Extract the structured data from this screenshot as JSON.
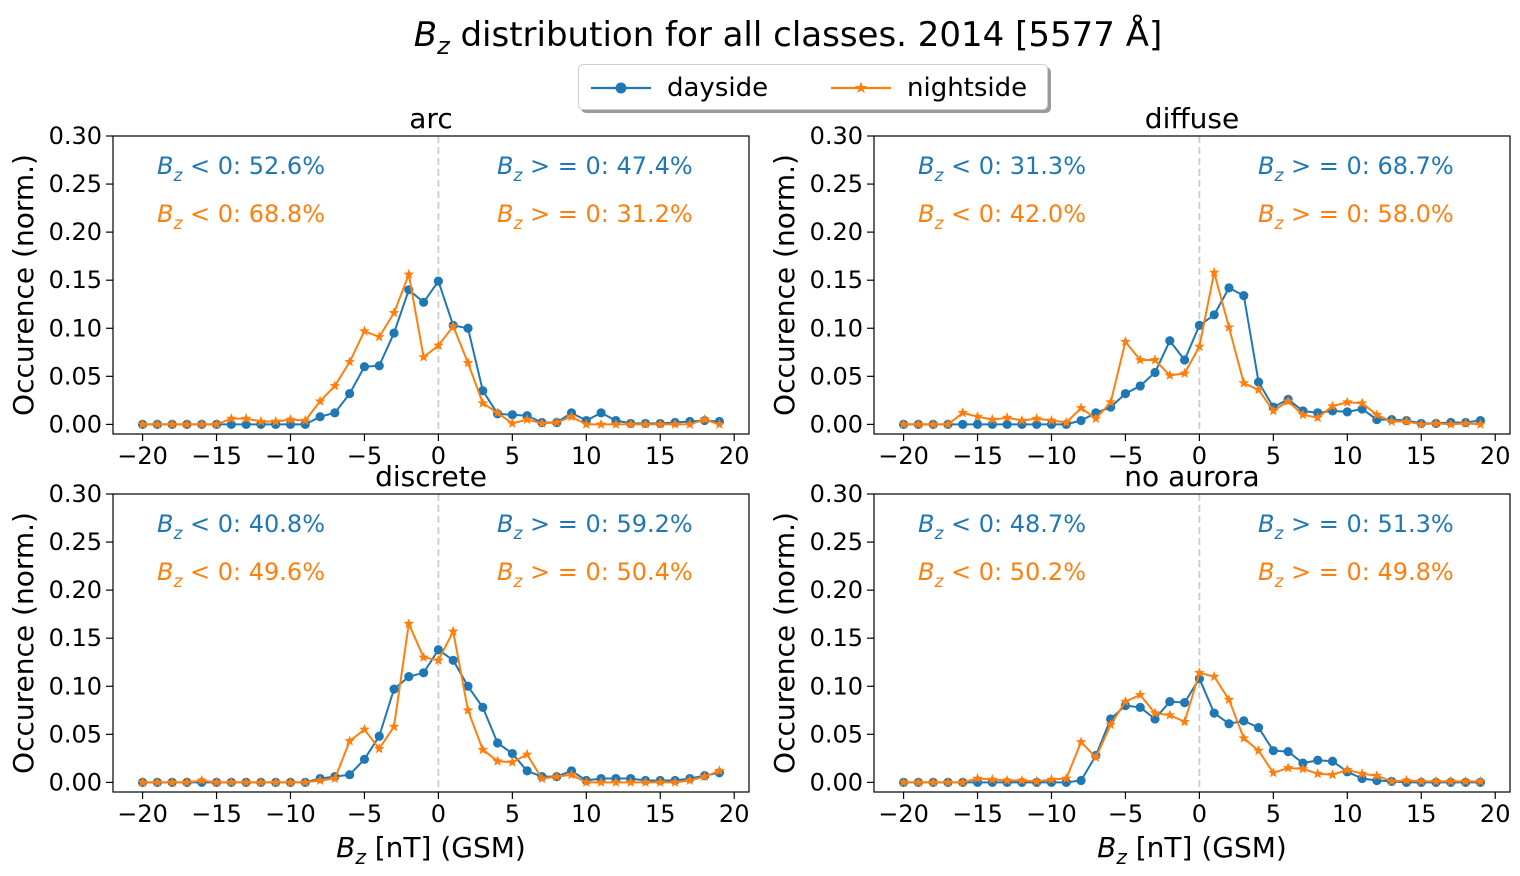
{
  "figure": {
    "title_prefix": "B",
    "title_sub": "z",
    "title_rest": " distribution for all classes. 2014 [5577 Å]",
    "ylabel": "Occurence (norm.)",
    "xlabel_prefix": "B",
    "xlabel_sub": "z",
    "xlabel_rest": " [nT] (GSM)"
  },
  "legend": {
    "placement": "top-center",
    "items": [
      {
        "label": "dayside",
        "color": "#1f77b4",
        "marker": "circle"
      },
      {
        "label": "nightside",
        "color": "#ff7f0e",
        "marker": "star"
      }
    ]
  },
  "colors": {
    "dayside": "#1f77b4",
    "nightside": "#ff7f0e",
    "zero_line": "#cccccc"
  },
  "annotations": {
    "neg_prefix": "B",
    "neg_sub": "z",
    "neg_rest": " < 0:",
    "pos_prefix": "B",
    "pos_sub": "z",
    "pos_rest": " > = 0:"
  },
  "chart_data": [
    {
      "type": "line",
      "title": "arc",
      "xlim": [
        -22,
        21
      ],
      "ylim": [
        -0.01,
        0.3
      ],
      "xticks": [
        -20,
        -15,
        -10,
        -5,
        0,
        5,
        10,
        15,
        20
      ],
      "yticks": [
        0.0,
        0.05,
        0.1,
        0.15,
        0.2,
        0.25,
        0.3
      ],
      "xticklabels": [
        "−20",
        "−15",
        "−10",
        "−5",
        "0",
        "5",
        "10",
        "15",
        "20"
      ],
      "yticklabels": [
        "0.00",
        "0.05",
        "0.10",
        "0.15",
        "0.20",
        "0.25",
        "0.30"
      ],
      "x": [
        -20,
        -19,
        -18,
        -17,
        -16,
        -15,
        -14,
        -13,
        -12,
        -11,
        -10,
        -9,
        -8,
        -7,
        -6,
        -5,
        -4,
        -3,
        -2,
        -1,
        0,
        1,
        2,
        3,
        4,
        5,
        6,
        7,
        8,
        9,
        10,
        11,
        12,
        13,
        14,
        15,
        16,
        17,
        18,
        19
      ],
      "series": [
        {
          "name": "dayside",
          "values": [
            0,
            0,
            0,
            0,
            0,
            0,
            0,
            0,
            0,
            0,
            0,
            0,
            0.008,
            0.012,
            0.032,
            0.06,
            0.061,
            0.095,
            0.14,
            0.127,
            0.149,
            0.103,
            0.1,
            0.035,
            0.011,
            0.01,
            0.009,
            0.002,
            0.002,
            0.012,
            0.004,
            0.012,
            0.004,
            0.001,
            0.001,
            0.001,
            0.002,
            0.003,
            0.004,
            0.003
          ]
        },
        {
          "name": "nightside",
          "values": [
            0,
            0,
            0,
            0,
            0,
            0,
            0.006,
            0.006,
            0.003,
            0.003,
            0.005,
            0.004,
            0.024,
            0.04,
            0.065,
            0.097,
            0.091,
            0.116,
            0.156,
            0.07,
            0.082,
            0.102,
            0.064,
            0.022,
            0.012,
            0.001,
            0.005,
            0.001,
            0.002,
            0.008,
            0,
            0,
            0,
            0,
            0,
            0,
            0,
            0,
            0.005,
            0
          ]
        }
      ],
      "percent_text": {
        "dayside_neg": "52.6%",
        "dayside_pos": "47.4%",
        "nightside_neg": "68.8%",
        "nightside_pos": "31.2%"
      }
    },
    {
      "type": "line",
      "title": "diffuse",
      "xlim": [
        -22,
        21
      ],
      "ylim": [
        -0.01,
        0.3
      ],
      "xticks": [
        -20,
        -15,
        -10,
        -5,
        0,
        5,
        10,
        15,
        20
      ],
      "yticks": [
        0.0,
        0.05,
        0.1,
        0.15,
        0.2,
        0.25,
        0.3
      ],
      "xticklabels": [
        "−20",
        "−15",
        "−10",
        "−5",
        "0",
        "5",
        "10",
        "15",
        "20"
      ],
      "yticklabels": [
        "0.00",
        "0.05",
        "0.10",
        "0.15",
        "0.20",
        "0.25",
        "0.30"
      ],
      "x": [
        -20,
        -19,
        -18,
        -17,
        -16,
        -15,
        -14,
        -13,
        -12,
        -11,
        -10,
        -9,
        -8,
        -7,
        -6,
        -5,
        -4,
        -3,
        -2,
        -1,
        0,
        1,
        2,
        3,
        4,
        5,
        6,
        7,
        8,
        9,
        10,
        11,
        12,
        13,
        14,
        15,
        16,
        17,
        18,
        19
      ],
      "series": [
        {
          "name": "dayside",
          "values": [
            0,
            0,
            0,
            0,
            0,
            0,
            0,
            0,
            0,
            0,
            0,
            0,
            0.004,
            0.012,
            0.018,
            0.032,
            0.04,
            0.054,
            0.087,
            0.067,
            0.103,
            0.114,
            0.142,
            0.134,
            0.044,
            0.018,
            0.026,
            0.014,
            0.012,
            0.014,
            0.013,
            0.016,
            0.005,
            0.005,
            0.004,
            0.001,
            0.001,
            0.002,
            0.002,
            0.004
          ]
        },
        {
          "name": "nightside",
          "values": [
            0,
            0,
            0,
            0,
            0.012,
            0.008,
            0.005,
            0.007,
            0.004,
            0.006,
            0.004,
            0.002,
            0.017,
            0.006,
            0.023,
            0.086,
            0.067,
            0.067,
            0.051,
            0.053,
            0.081,
            0.158,
            0.101,
            0.043,
            0.036,
            0.014,
            0.024,
            0.01,
            0.007,
            0.019,
            0.023,
            0.022,
            0.01,
            0.003,
            0.003,
            0,
            0.001,
            0,
            0.001,
            0
          ]
        }
      ],
      "percent_text": {
        "dayside_neg": "31.3%",
        "dayside_pos": "68.7%",
        "nightside_neg": "42.0%",
        "nightside_pos": "58.0%"
      }
    },
    {
      "type": "line",
      "title": "discrete",
      "xlim": [
        -22,
        21
      ],
      "ylim": [
        -0.01,
        0.3
      ],
      "xticks": [
        -20,
        -15,
        -10,
        -5,
        0,
        5,
        10,
        15,
        20
      ],
      "yticks": [
        0.0,
        0.05,
        0.1,
        0.15,
        0.2,
        0.25,
        0.3
      ],
      "xticklabels": [
        "−20",
        "−15",
        "−10",
        "−5",
        "0",
        "5",
        "10",
        "15",
        "20"
      ],
      "yticklabels": [
        "0.00",
        "0.05",
        "0.10",
        "0.15",
        "0.20",
        "0.25",
        "0.30"
      ],
      "x": [
        -20,
        -19,
        -18,
        -17,
        -16,
        -15,
        -14,
        -13,
        -12,
        -11,
        -10,
        -9,
        -8,
        -7,
        -6,
        -5,
        -4,
        -3,
        -2,
        -1,
        0,
        1,
        2,
        3,
        4,
        5,
        6,
        7,
        8,
        9,
        10,
        11,
        12,
        13,
        14,
        15,
        16,
        17,
        18,
        19
      ],
      "series": [
        {
          "name": "dayside",
          "values": [
            0,
            0,
            0,
            0,
            0,
            0,
            0,
            0,
            0,
            0,
            0,
            0,
            0.004,
            0.006,
            0.008,
            0.024,
            0.048,
            0.097,
            0.11,
            0.114,
            0.138,
            0.127,
            0.1,
            0.078,
            0.041,
            0.03,
            0.012,
            0.006,
            0.006,
            0.012,
            0.002,
            0.004,
            0.004,
            0.004,
            0.002,
            0.002,
            0.002,
            0.004,
            0.007,
            0.01
          ]
        },
        {
          "name": "nightside",
          "values": [
            0,
            0,
            0,
            0,
            0.002,
            0,
            0,
            0,
            0,
            0,
            0,
            0,
            0.002,
            0.004,
            0.043,
            0.055,
            0.035,
            0.058,
            0.165,
            0.13,
            0.127,
            0.157,
            0.075,
            0.034,
            0.022,
            0.021,
            0.029,
            0.004,
            0.006,
            0.008,
            0,
            0,
            0,
            0,
            0,
            0,
            0,
            0.002,
            0.006,
            0.012
          ]
        }
      ],
      "percent_text": {
        "dayside_neg": "40.8%",
        "dayside_pos": "59.2%",
        "nightside_neg": "49.6%",
        "nightside_pos": "50.4%"
      }
    },
    {
      "type": "line",
      "title": "no aurora",
      "xlim": [
        -22,
        21
      ],
      "ylim": [
        -0.01,
        0.3
      ],
      "xticks": [
        -20,
        -15,
        -10,
        -5,
        0,
        5,
        10,
        15,
        20
      ],
      "yticks": [
        0.0,
        0.05,
        0.1,
        0.15,
        0.2,
        0.25,
        0.3
      ],
      "xticklabels": [
        "−20",
        "−15",
        "−10",
        "−5",
        "0",
        "5",
        "10",
        "15",
        "20"
      ],
      "yticklabels": [
        "0.00",
        "0.05",
        "0.10",
        "0.15",
        "0.20",
        "0.25",
        "0.30"
      ],
      "x": [
        -20,
        -19,
        -18,
        -17,
        -16,
        -15,
        -14,
        -13,
        -12,
        -11,
        -10,
        -9,
        -8,
        -7,
        -6,
        -5,
        -4,
        -3,
        -2,
        -1,
        0,
        1,
        2,
        3,
        4,
        5,
        6,
        7,
        8,
        9,
        10,
        11,
        12,
        13,
        14,
        15,
        16,
        17,
        18,
        19
      ],
      "series": [
        {
          "name": "dayside",
          "values": [
            0,
            0,
            0,
            0,
            0,
            0,
            0,
            0,
            0,
            0,
            0,
            0,
            0.002,
            0.028,
            0.066,
            0.08,
            0.078,
            0.066,
            0.084,
            0.083,
            0.108,
            0.072,
            0.061,
            0.064,
            0.057,
            0.033,
            0.032,
            0.02,
            0.023,
            0.022,
            0.011,
            0.004,
            0.002,
            0.001,
            0,
            0,
            0,
            0,
            0,
            0
          ]
        },
        {
          "name": "nightside",
          "values": [
            0,
            0,
            0,
            0,
            0,
            0.004,
            0.003,
            0.002,
            0.002,
            0.001,
            0.003,
            0.004,
            0.042,
            0.026,
            0.06,
            0.084,
            0.091,
            0.072,
            0.07,
            0.063,
            0.114,
            0.11,
            0.086,
            0.046,
            0.033,
            0.01,
            0.015,
            0.014,
            0.009,
            0.008,
            0.013,
            0.009,
            0.007,
            0.001,
            0.002,
            0.001,
            0.001,
            0.001,
            0.001,
            0.001
          ]
        }
      ],
      "percent_text": {
        "dayside_neg": "48.7%",
        "dayside_pos": "51.3%",
        "nightside_neg": "50.2%",
        "nightside_pos": "49.8%"
      }
    }
  ]
}
